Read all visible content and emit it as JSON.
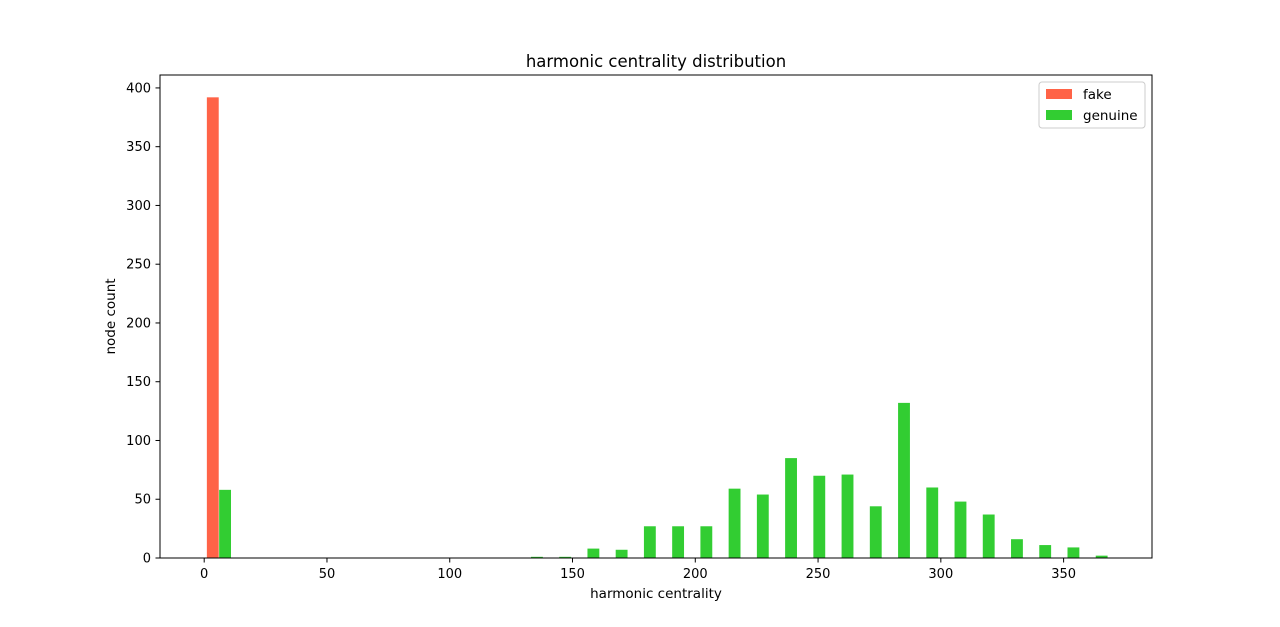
{
  "chart_data": {
    "type": "bar",
    "title": "harmonic centrality distribution",
    "xlabel": "harmonic centrality",
    "ylabel": "node count",
    "xlim": [
      -18,
      386
    ],
    "ylim": [
      0,
      411
    ],
    "xticks": [
      0,
      50,
      100,
      150,
      200,
      250,
      300,
      350
    ],
    "yticks": [
      0,
      50,
      100,
      150,
      200,
      250,
      300,
      350,
      400
    ],
    "legend_position": "top-right",
    "bin_width": 11.5,
    "series": [
      {
        "name": "fake",
        "color": "#ff6347",
        "bars": [
          {
            "x": 3.5,
            "value": 392
          }
        ]
      },
      {
        "name": "genuine",
        "color": "#32cd32",
        "bars": [
          {
            "x": 8.5,
            "value": 58
          },
          {
            "x": 135.5,
            "value": 1
          },
          {
            "x": 147,
            "value": 1
          },
          {
            "x": 158.5,
            "value": 8
          },
          {
            "x": 170,
            "value": 7
          },
          {
            "x": 181.5,
            "value": 27
          },
          {
            "x": 193,
            "value": 27
          },
          {
            "x": 204.5,
            "value": 27
          },
          {
            "x": 216,
            "value": 59
          },
          {
            "x": 227.5,
            "value": 54
          },
          {
            "x": 239,
            "value": 85
          },
          {
            "x": 250.5,
            "value": 70
          },
          {
            "x": 262,
            "value": 71
          },
          {
            "x": 273.5,
            "value": 44
          },
          {
            "x": 285,
            "value": 132
          },
          {
            "x": 296.5,
            "value": 60
          },
          {
            "x": 308,
            "value": 48
          },
          {
            "x": 319.5,
            "value": 37
          },
          {
            "x": 331,
            "value": 16
          },
          {
            "x": 342.5,
            "value": 11
          },
          {
            "x": 354,
            "value": 9
          },
          {
            "x": 365.5,
            "value": 2
          }
        ]
      }
    ]
  }
}
